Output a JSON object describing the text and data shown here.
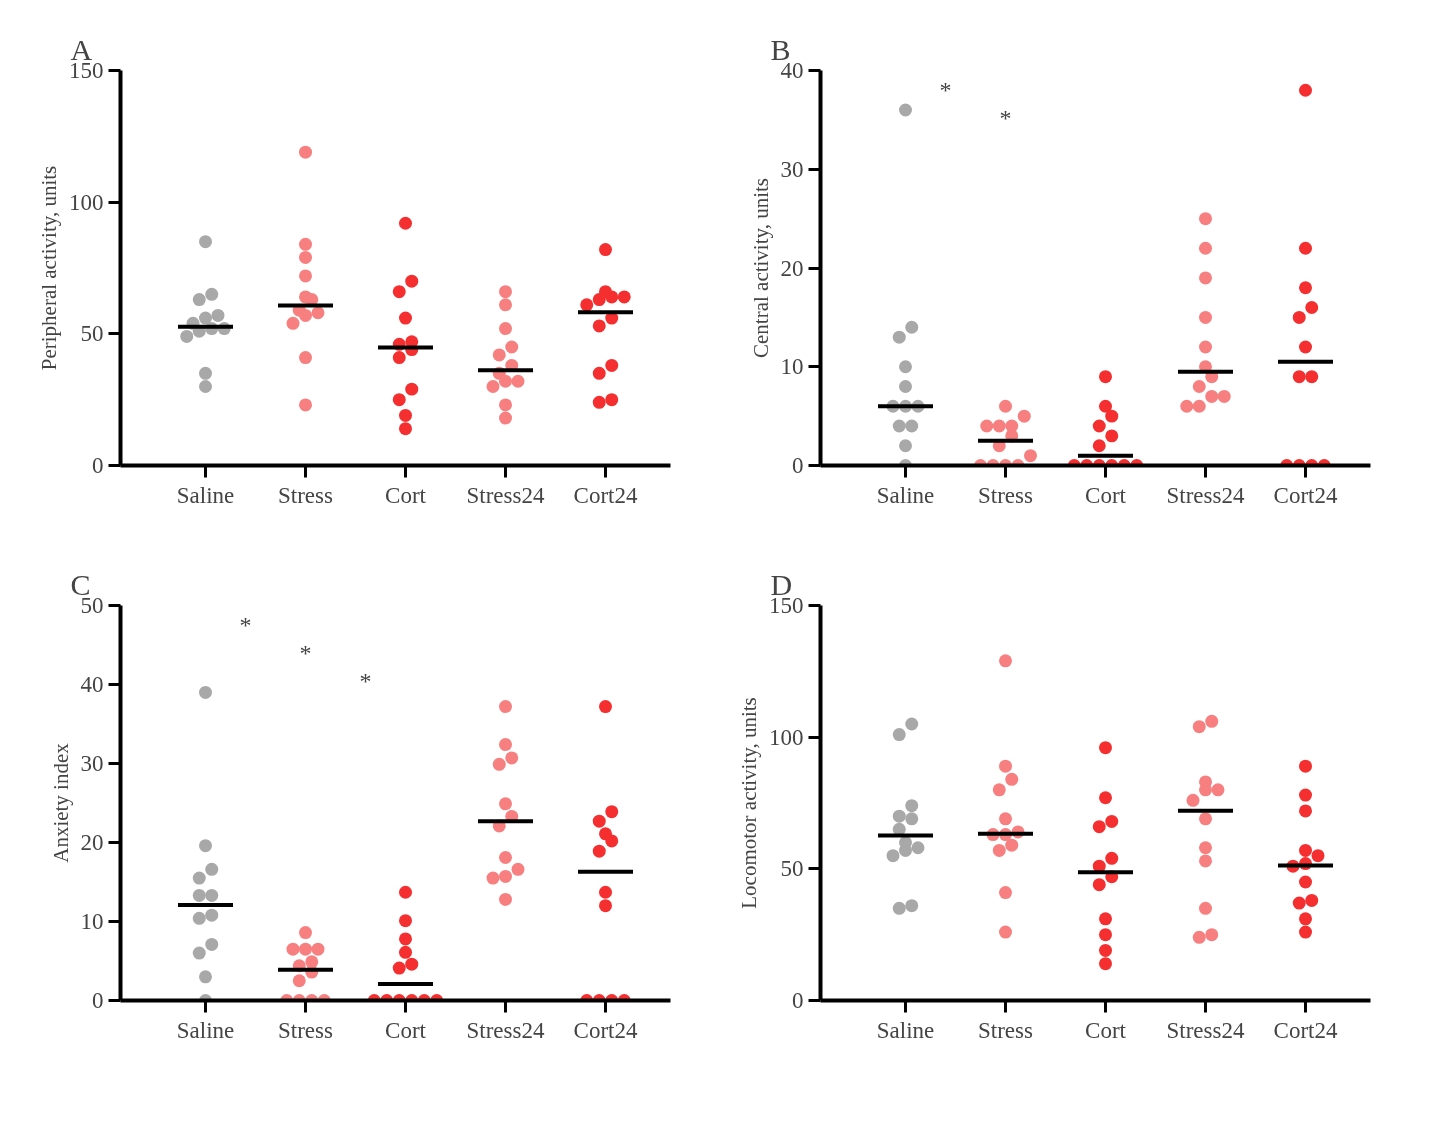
{
  "chart_data": [
    {
      "type": "scatter",
      "title": "A",
      "ylabel": "Peripheral activity, units",
      "categories": [
        "Saline",
        "Stress",
        "Cort",
        "Stress24",
        "Cort24"
      ],
      "ylim": [
        0,
        150
      ],
      "yticks": [
        0,
        50,
        100,
        150
      ],
      "series": [
        {
          "color": "#a8a8a8",
          "x": [
            "Saline",
            "Saline",
            "Saline",
            "Saline",
            "Saline",
            "Saline",
            "Saline",
            "Saline",
            "Saline",
            "Saline",
            "Saline",
            "Saline"
          ],
          "values": [
            85,
            65,
            63,
            57,
            56,
            54,
            52,
            52,
            51,
            49,
            35,
            30
          ]
        },
        {
          "color": "#f77f7f",
          "x": [
            "Stress",
            "Stress",
            "Stress",
            "Stress",
            "Stress",
            "Stress",
            "Stress",
            "Stress",
            "Stress",
            "Stress",
            "Stress",
            "Stress"
          ],
          "values": [
            119,
            84,
            79,
            72,
            64,
            63,
            59,
            58,
            57,
            54,
            41,
            23
          ]
        },
        {
          "color": "#f52f2f",
          "x": [
            "Cort",
            "Cort",
            "Cort",
            "Cort",
            "Cort",
            "Cort",
            "Cort",
            "Cort",
            "Cort",
            "Cort",
            "Cort",
            "Cort"
          ],
          "values": [
            92,
            70,
            66,
            56,
            47,
            46,
            44,
            41,
            29,
            25,
            19,
            14
          ]
        },
        {
          "color": "#f77f7f",
          "x": [
            "Stress24",
            "Stress24",
            "Stress24",
            "Stress24",
            "Stress24",
            "Stress24",
            "Stress24",
            "Stress24",
            "Stress24",
            "Stress24",
            "Stress24",
            "Stress24"
          ],
          "values": [
            66,
            61,
            52,
            45,
            42,
            38,
            35,
            32,
            32,
            30,
            23,
            18
          ]
        },
        {
          "color": "#f52f2f",
          "x": [
            "Cort24",
            "Cort24",
            "Cort24",
            "Cort24",
            "Cort24",
            "Cort24",
            "Cort24",
            "Cort24",
            "Cort24",
            "Cort24",
            "Cort24",
            "Cort24"
          ],
          "values": [
            82,
            66,
            64,
            64,
            63,
            61,
            56,
            53,
            38,
            35,
            25,
            24
          ]
        },
        {
          "type": "bar",
          "color": "#000000",
          "x": [
            "Saline",
            "Stress",
            "Cort",
            "Stress24",
            "Cort24"
          ],
          "base": [
            52.7,
            60.8,
            44.8,
            36.2,
            58.2
          ],
          "values": [
            0,
            0,
            0,
            0,
            0
          ]
        }
      ]
    },
    {
      "type": "scatter",
      "title": "B",
      "ylabel": "Central activity, units",
      "categories": [
        "Saline",
        "Stress",
        "Cort",
        "Stress24",
        "Cort24"
      ],
      "ylim": [
        0,
        40
      ],
      "yticks": [
        0,
        10,
        20,
        30,
        40
      ],
      "annotations": [
        "*",
        "*"
      ],
      "series": [
        {
          "color": "#a8a8a8",
          "x": [
            "Saline",
            "Saline",
            "Saline",
            "Saline",
            "Saline",
            "Saline",
            "Saline",
            "Saline",
            "Saline",
            "Saline",
            "Saline",
            "Saline"
          ],
          "values": [
            36,
            14,
            13,
            10,
            8,
            6,
            6,
            6,
            4,
            4,
            2,
            0
          ]
        },
        {
          "color": "#f77f7f",
          "x": [
            "Stress",
            "Stress",
            "Stress",
            "Stress",
            "Stress",
            "Stress",
            "Stress",
            "Stress",
            "Stress",
            "Stress",
            "Stress",
            "Stress"
          ],
          "values": [
            6,
            5,
            4,
            4,
            4,
            3,
            2,
            1,
            0,
            0,
            0,
            0
          ]
        },
        {
          "color": "#f52f2f",
          "x": [
            "Cort",
            "Cort",
            "Cort",
            "Cort",
            "Cort",
            "Cort",
            "Cort",
            "Cort",
            "Cort",
            "Cort",
            "Cort",
            "Cort"
          ],
          "values": [
            9,
            6,
            5,
            4,
            3,
            2,
            0,
            0,
            0,
            0,
            0,
            0
          ]
        },
        {
          "color": "#f77f7f",
          "x": [
            "Stress24",
            "Stress24",
            "Stress24",
            "Stress24",
            "Stress24",
            "Stress24",
            "Stress24",
            "Stress24",
            "Stress24",
            "Stress24",
            "Stress24",
            "Stress24"
          ],
          "values": [
            25,
            22,
            19,
            15,
            12,
            10,
            9,
            8,
            7,
            7,
            6,
            6
          ]
        },
        {
          "color": "#f52f2f",
          "x": [
            "Cort24",
            "Cort24",
            "Cort24",
            "Cort24",
            "Cort24",
            "Cort24",
            "Cort24",
            "Cort24",
            "Cort24",
            "Cort24",
            "Cort24",
            "Cort24"
          ],
          "values": [
            38,
            22,
            18,
            16,
            15,
            12,
            9,
            9,
            0,
            0,
            0,
            0
          ]
        },
        {
          "type": "bar",
          "color": "#000000",
          "x": [
            "Saline",
            "Stress",
            "Cort",
            "Stress24",
            "Cort24"
          ],
          "base": [
            6,
            2.5,
            1,
            9.5,
            10.5
          ],
          "values": [
            0,
            0,
            0,
            0,
            0
          ]
        }
      ]
    },
    {
      "type": "scatter",
      "title": "C",
      "ylabel": "Anxiety index",
      "categories": [
        "Saline",
        "Stress",
        "Cort",
        "Stress24",
        "Cort24"
      ],
      "ylim": [
        0,
        50
      ],
      "yticks": [
        0,
        10,
        20,
        30,
        40,
        50
      ],
      "annotations": [
        "*",
        "*",
        "*"
      ],
      "series": [
        {
          "color": "#a8a8a8",
          "x": [
            "Saline",
            "Saline",
            "Saline",
            "Saline",
            "Saline",
            "Saline",
            "Saline",
            "Saline",
            "Saline",
            "Saline",
            "Saline",
            "Saline"
          ],
          "values": [
            39,
            19.6,
            16.6,
            15.5,
            13.3,
            13.3,
            10.8,
            10.4,
            7.1,
            6,
            3,
            0
          ]
        },
        {
          "color": "#f77f7f",
          "x": [
            "Stress",
            "Stress",
            "Stress",
            "Stress",
            "Stress",
            "Stress",
            "Stress",
            "Stress",
            "Stress",
            "Stress",
            "Stress",
            "Stress"
          ],
          "values": [
            8.6,
            6.5,
            6.5,
            6.5,
            4.9,
            4.4,
            3.6,
            2.5,
            0,
            0,
            0,
            0
          ]
        },
        {
          "color": "#f52f2f",
          "x": [
            "Cort",
            "Cort",
            "Cort",
            "Cort",
            "Cort",
            "Cort",
            "Cort",
            "Cort",
            "Cort",
            "Cort",
            "Cort",
            "Cort"
          ],
          "values": [
            13.7,
            10.1,
            7.8,
            6.1,
            4.6,
            4.1,
            0,
            0,
            0,
            0,
            0,
            0
          ]
        },
        {
          "color": "#f77f7f",
          "x": [
            "Stress24",
            "Stress24",
            "Stress24",
            "Stress24",
            "Stress24",
            "Stress24",
            "Stress24",
            "Stress24",
            "Stress24",
            "Stress24",
            "Stress24",
            "Stress24"
          ],
          "values": [
            37.2,
            32.4,
            30.7,
            29.9,
            24.9,
            23.3,
            22.1,
            18.1,
            16.6,
            15.7,
            15.5,
            12.8
          ]
        },
        {
          "color": "#f52f2f",
          "x": [
            "Cort24",
            "Cort24",
            "Cort24",
            "Cort24",
            "Cort24",
            "Cort24",
            "Cort24",
            "Cort24",
            "Cort24",
            "Cort24",
            "Cort24",
            "Cort24"
          ],
          "values": [
            37.2,
            23.9,
            22.7,
            21.1,
            20.2,
            18.9,
            13.7,
            12,
            0,
            0,
            0,
            0
          ]
        },
        {
          "type": "bar",
          "color": "#000000",
          "x": [
            "Saline",
            "Stress",
            "Cort",
            "Stress24",
            "Cort24"
          ],
          "base": [
            12.1,
            3.9,
            2.1,
            22.7,
            16.3
          ],
          "values": [
            0,
            0,
            0,
            0,
            0
          ]
        }
      ]
    },
    {
      "type": "scatter",
      "title": "D",
      "ylabel": "Locomotor activity, units",
      "categories": [
        "Saline",
        "Stress",
        "Cort",
        "Stress24",
        "Cort24"
      ],
      "ylim": [
        0,
        150
      ],
      "yticks": [
        0,
        50,
        100,
        150
      ],
      "series": [
        {
          "color": "#a8a8a8",
          "x": [
            "Saline",
            "Saline",
            "Saline",
            "Saline",
            "Saline",
            "Saline",
            "Saline",
            "Saline",
            "Saline",
            "Saline",
            "Saline",
            "Saline"
          ],
          "values": [
            105,
            101,
            74,
            70,
            69,
            65,
            60,
            58,
            57,
            55,
            36,
            35
          ]
        },
        {
          "color": "#f77f7f",
          "x": [
            "Stress",
            "Stress",
            "Stress",
            "Stress",
            "Stress",
            "Stress",
            "Stress",
            "Stress",
            "Stress",
            "Stress",
            "Stress",
            "Stress"
          ],
          "values": [
            129,
            89,
            84,
            80,
            69,
            64,
            63,
            63,
            59,
            57,
            41,
            26
          ]
        },
        {
          "color": "#f52f2f",
          "x": [
            "Cort",
            "Cort",
            "Cort",
            "Cort",
            "Cort",
            "Cort",
            "Cort",
            "Cort",
            "Cort",
            "Cort",
            "Cort",
            "Cort"
          ],
          "values": [
            96,
            77,
            68,
            66,
            54,
            51,
            47,
            44,
            31,
            25,
            19,
            14
          ]
        },
        {
          "color": "#f77f7f",
          "x": [
            "Stress24",
            "Stress24",
            "Stress24",
            "Stress24",
            "Stress24",
            "Stress24",
            "Stress24",
            "Stress24",
            "Stress24",
            "Stress24",
            "Stress24",
            "Stress24"
          ],
          "values": [
            106,
            104,
            83,
            80,
            80,
            76,
            69,
            58,
            53,
            35,
            25,
            24
          ]
        },
        {
          "color": "#f52f2f",
          "x": [
            "Cort24",
            "Cort24",
            "Cort24",
            "Cort24",
            "Cort24",
            "Cort24",
            "Cort24",
            "Cort24",
            "Cort24",
            "Cort24",
            "Cort24",
            "Cort24"
          ],
          "values": [
            89,
            78,
            72,
            57,
            55,
            52,
            51,
            45,
            38,
            37,
            31,
            26
          ]
        },
        {
          "type": "bar",
          "color": "#000000",
          "x": [
            "Saline",
            "Stress",
            "Cort",
            "Stress24",
            "Cort24"
          ],
          "base": [
            62.7,
            63.3,
            48.7,
            72.1,
            51.3
          ],
          "values": [
            0,
            0,
            0,
            0,
            0
          ]
        }
      ]
    }
  ]
}
